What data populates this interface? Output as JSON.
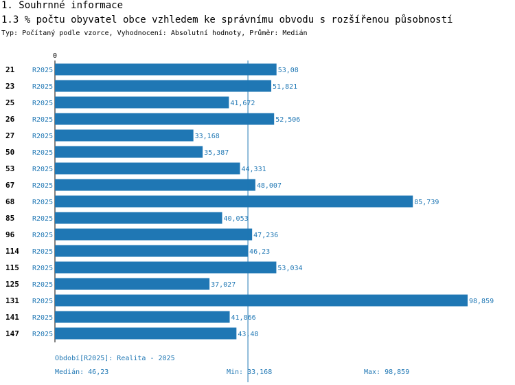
{
  "header": {
    "section": "1. Souhrnné informace",
    "title": "1.3 % počtu obyvatel obce vzhledem ke správnímu obvodu s rozšířenou působností",
    "subtitle": "Typ: Počítaný podle vzorce, Vyhodnocení: Absolutní hodnoty, Průměr: Medián"
  },
  "chart_data": {
    "type": "bar",
    "orientation": "horizontal",
    "series_label": "R2025",
    "categories": [
      "21",
      "23",
      "25",
      "26",
      "27",
      "50",
      "53",
      "67",
      "68",
      "85",
      "96",
      "114",
      "115",
      "125",
      "131",
      "141",
      "147"
    ],
    "values": [
      53.08,
      51.821,
      41.672,
      52.506,
      33.168,
      35.387,
      44.331,
      48.007,
      85.739,
      40.053,
      47.236,
      46.23,
      53.034,
      37.027,
      98.859,
      41.866,
      43.48
    ],
    "value_labels": [
      "53,08",
      "51,821",
      "41,672",
      "52,506",
      "33,168",
      "35,387",
      "44,331",
      "48,007",
      "85,739",
      "40,053",
      "47,236",
      "46,23",
      "53,034",
      "37,027",
      "98,859",
      "41,866",
      "43,48"
    ],
    "xlim": [
      0,
      98.859
    ],
    "zero_label": "0",
    "median": 46.23,
    "bar_color": "#1f77b4"
  },
  "footer": {
    "period": "Období[R2025]: Realita - 2025",
    "median": "Medián: 46,23",
    "min": "Min: 33,168",
    "max": "Max: 98,859"
  }
}
